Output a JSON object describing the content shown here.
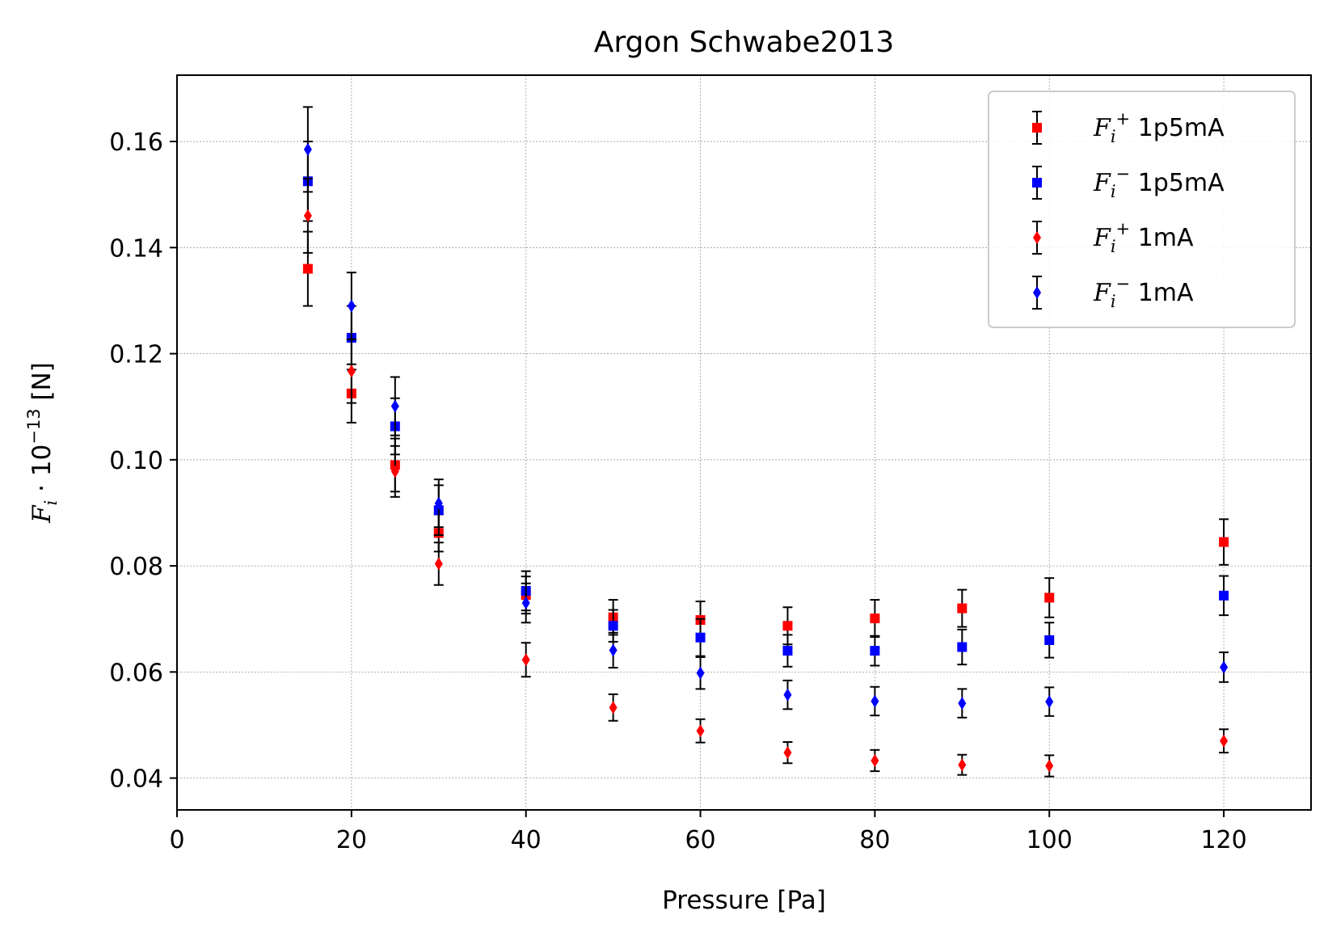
{
  "chart_data": {
    "type": "scatter",
    "title": "Argon Schwabe2013",
    "xlabel": "Pressure [Pa]",
    "ylabel": "F_i · 10^-13 [N]",
    "ylabel_parts": {
      "f": "F",
      "sub": "i",
      "dot": " · 10",
      "exp": "−13",
      "unit": " [N]"
    },
    "xlim": [
      0,
      130
    ],
    "ylim": [
      0.034,
      0.1725
    ],
    "xticks": [
      0,
      20,
      40,
      60,
      80,
      100,
      120
    ],
    "xtick_labels": [
      "0",
      "20",
      "40",
      "60",
      "80",
      "100",
      "120"
    ],
    "yticks": [
      0.04,
      0.06,
      0.08,
      0.1,
      0.12,
      0.14,
      0.16
    ],
    "ytick_labels": [
      "0.04",
      "0.06",
      "0.08",
      "0.10",
      "0.12",
      "0.14",
      "0.16"
    ],
    "grid": true,
    "legend_position": "top-right",
    "x": [
      15,
      20,
      25,
      30,
      40,
      50,
      60,
      70,
      80,
      90,
      100,
      120
    ],
    "series": [
      {
        "name": "F_i^+ 1p5mA",
        "label_sup": "+",
        "label_rest": "1p5mA",
        "marker": "square",
        "color": "#ff0000",
        "values": [
          0.136,
          0.1125,
          0.099,
          0.0862,
          0.0745,
          0.0703,
          0.0698,
          0.0687,
          0.0701,
          0.072,
          0.074,
          0.0845
        ],
        "errors": [
          0.007,
          0.0055,
          0.005,
          0.0035,
          0.0035,
          0.0033,
          0.0035,
          0.0035,
          0.0035,
          0.0035,
          0.0037,
          0.0043
        ]
      },
      {
        "name": "F_i^- 1p5mA",
        "label_sup": "−",
        "label_rest": "1p5mA",
        "marker": "square",
        "color": "#0000ff",
        "values": [
          0.1525,
          0.123,
          0.1063,
          0.0905,
          0.0753,
          0.0687,
          0.0665,
          0.064,
          0.064,
          0.0647,
          0.066,
          0.0744
        ],
        "errors": [
          0.0075,
          0.006,
          0.0053,
          0.0047,
          0.0037,
          0.003,
          0.0035,
          0.003,
          0.0028,
          0.0033,
          0.0033,
          0.0037
        ]
      },
      {
        "name": "F_i^+ 1mA",
        "label_sup": "+",
        "label_rest": "1mA",
        "marker": "diamond",
        "color": "#ff0000",
        "values": [
          0.146,
          0.1167,
          0.0978,
          0.0804,
          0.0623,
          0.0533,
          0.0489,
          0.0448,
          0.0433,
          0.0425,
          0.0423,
          0.047
        ],
        "errors": [
          0.007,
          0.006,
          0.0048,
          0.004,
          0.0032,
          0.0025,
          0.0022,
          0.002,
          0.002,
          0.0019,
          0.002,
          0.0022
        ]
      },
      {
        "name": "F_i^- 1mA",
        "label_sup": "−",
        "label_rest": "1mA",
        "marker": "diamond",
        "color": "#0000ff",
        "values": [
          0.1585,
          0.129,
          0.1101,
          0.0918,
          0.073,
          0.0641,
          0.0598,
          0.0557,
          0.0545,
          0.0541,
          0.0544,
          0.0609
        ],
        "errors": [
          0.008,
          0.0063,
          0.0055,
          0.0045,
          0.0037,
          0.0033,
          0.003,
          0.0027,
          0.0027,
          0.0027,
          0.0027,
          0.0028
        ]
      }
    ]
  }
}
